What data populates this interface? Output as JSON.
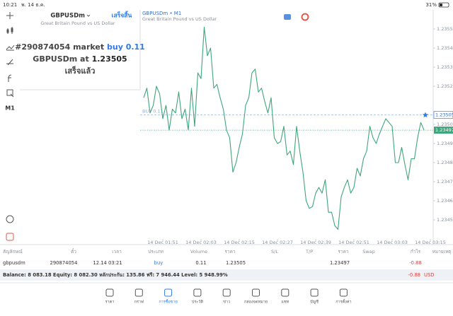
{
  "status_bar": {
    "time": "10:21",
    "date": "พ. 14 ธ.ค.",
    "battery": "31%"
  },
  "toolbar": {
    "timeframe": "M1"
  },
  "order_panel": {
    "symbol": "GBPUSDm",
    "done": "เสร็จสิ้น",
    "description": "Great Britain Pound vs US Dollar",
    "message": {
      "ticket": "#290874054 market",
      "action": "buy 0.11",
      "symbol_at": "GBPUSDm at",
      "price": "1.23505",
      "status": "เสร็จแล้ว"
    }
  },
  "chart_data": {
    "type": "line",
    "title": "GBPUSDm • M1",
    "subtitle": "Great Britain Pound vs US Dollar",
    "categories": [
      null,
      null,
      null,
      null,
      null,
      null,
      "14 Dec 01:51",
      null,
      null,
      null,
      null,
      null,
      null,
      null,
      null,
      null,
      null,
      null,
      "14 Dec 02:03",
      null,
      null,
      null,
      null,
      null,
      null,
      null,
      null,
      null,
      null,
      null,
      "14 Dec 02:15",
      null,
      null,
      null,
      null,
      null,
      null,
      null,
      null,
      null,
      null,
      null,
      "14 Dec 02:27",
      null,
      null,
      null,
      null,
      null,
      null,
      null,
      null,
      null,
      null,
      null,
      "14 Dec 02:39",
      null,
      null,
      null,
      null,
      null,
      null,
      null,
      null,
      null,
      null,
      null,
      "14 Dec 02:51",
      null,
      null,
      null,
      null,
      null,
      null,
      null,
      null,
      null,
      null,
      null,
      "14 Dec 03:03",
      null,
      null,
      null,
      null,
      null,
      null,
      null,
      null,
      null,
      null,
      null,
      "14 Dec 03:15"
    ],
    "values": [
      1.23514,
      1.23519,
      1.23506,
      1.2351,
      1.2352,
      1.23516,
      1.23503,
      1.2351,
      1.23497,
      1.23508,
      1.23506,
      1.23517,
      1.23503,
      1.23508,
      1.23497,
      1.23519,
      1.23499,
      1.23527,
      1.23524,
      1.23551,
      1.23536,
      1.2354,
      1.23519,
      1.23521,
      1.23514,
      1.23508,
      1.23497,
      1.23493,
      1.23475,
      1.2348,
      1.23488,
      1.23495,
      1.2351,
      1.23514,
      1.23527,
      1.23529,
      1.23517,
      1.23519,
      1.23512,
      1.23506,
      1.23514,
      1.23493,
      1.2349,
      1.23491,
      1.23499,
      1.23484,
      1.23486,
      1.23479,
      1.23499,
      1.23486,
      1.23475,
      1.2346,
      1.23456,
      1.23457,
      1.23464,
      1.23467,
      1.23464,
      1.23471,
      1.23454,
      1.23454,
      1.23447,
      1.23445,
      1.23462,
      1.23467,
      1.23471,
      1.23464,
      1.23467,
      1.23477,
      1.23473,
      1.23482,
      1.23486,
      1.23499,
      1.23493,
      1.2349,
      1.23495,
      1.23499,
      1.23503,
      1.23501,
      1.23499,
      1.2348,
      1.2348,
      1.23488,
      1.23479,
      1.23471,
      1.23482,
      1.23482,
      1.23493,
      1.23501,
      1.23497,
      null,
      null
    ],
    "color": "#3fa57c",
    "ylim": [
      1.2344,
      1.2356
    ],
    "yticks": [
      {
        "value": 1.2355,
        "label": "1.23550"
      },
      {
        "value": 1.2354,
        "label": "1.23540"
      },
      {
        "value": 1.2353,
        "label": "1.23530"
      },
      {
        "value": 1.2352,
        "label": "1.23520"
      },
      {
        "value": 1.235,
        "label": "1.23500"
      },
      {
        "value": 1.2349,
        "label": "1.23490"
      },
      {
        "value": 1.2348,
        "label": "1.23480"
      },
      {
        "value": 1.2347,
        "label": "1.23470"
      },
      {
        "value": 1.2346,
        "label": "1.23460"
      },
      {
        "value": 1.2345,
        "label": "1.23450"
      }
    ],
    "buy_line": {
      "label": "BUY 0.11",
      "value": 1.23505
    },
    "bid_line": {
      "value": 1.23497
    }
  },
  "positions": {
    "headers": [
      "สัญลักษณ์",
      "ตั๋ว",
      "เวลา",
      "ประเภท",
      "Volume",
      "ราคา",
      "S/L",
      "T/P",
      "ราคา",
      "Swap",
      "กำไร",
      "หมายเหตุ"
    ],
    "rows": [
      [
        "gbpusdm",
        "290874054",
        "12.14 03:21",
        "buy",
        "0.11",
        "1.23505",
        null,
        null,
        "1.23497",
        null,
        "-0.88",
        null
      ]
    ]
  },
  "account": {
    "summary": "Balance: 8 083.18 Equity: 8 082.30 หลักประกัน: 135.86 ฟรี: 7 946.44 Level: 5 948.99%",
    "profit": "-0.88",
    "currency": "USD"
  },
  "nav": [
    "ราคา",
    "กราฟ",
    "การซื้อขาย",
    "ประวัติ",
    "ข่าว",
    "กล่องจดหมาย",
    "แชท",
    "บัญชี",
    "การตั้งค่า"
  ]
}
